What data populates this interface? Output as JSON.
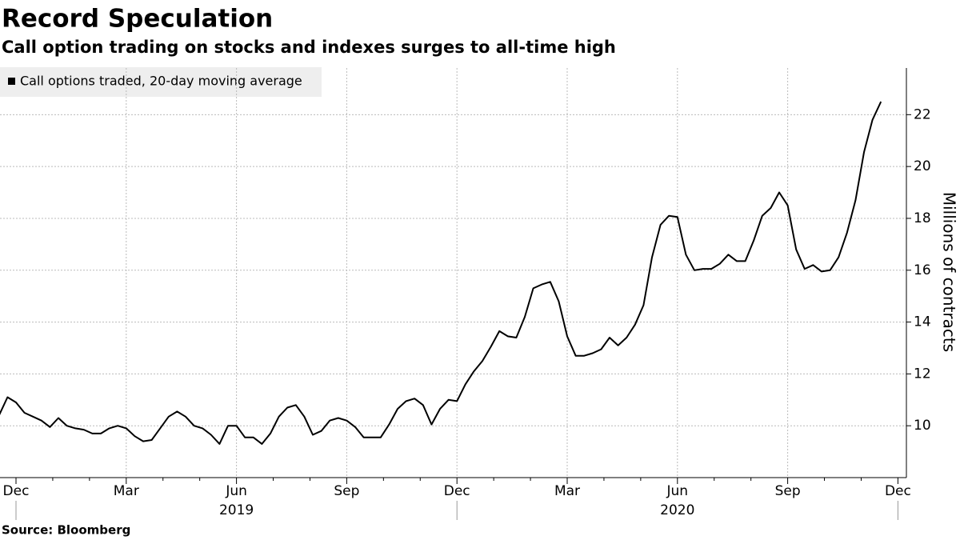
{
  "title": "Record Speculation",
  "subtitle": "Call option trading on stocks and indexes surges to all-time high",
  "source": "Source: Bloomberg",
  "chart_data": {
    "type": "line",
    "y_label": "Millions of contracts",
    "categories": [
      null,
      null,
      "Dec",
      null,
      null,
      null,
      null,
      null,
      null,
      null,
      null,
      null,
      null,
      null,
      null,
      "Mar",
      null,
      null,
      null,
      null,
      null,
      null,
      null,
      null,
      null,
      null,
      null,
      null,
      "Jun",
      null,
      null,
      null,
      null,
      null,
      null,
      null,
      null,
      null,
      null,
      null,
      null,
      "Sep",
      null,
      null,
      null,
      null,
      null,
      null,
      null,
      null,
      null,
      null,
      null,
      null,
      "Dec",
      null,
      null,
      null,
      null,
      null,
      null,
      null,
      null,
      null,
      null,
      null,
      null,
      "Mar",
      null,
      null,
      null,
      null,
      null,
      null,
      null,
      null,
      null,
      null,
      null,
      null,
      "Jun",
      null,
      null,
      null,
      null,
      null,
      null,
      null,
      null,
      null,
      null,
      null,
      null,
      "Sep",
      null,
      null,
      null,
      null,
      null,
      null,
      null,
      null,
      null,
      null,
      null,
      null,
      "Dec"
    ],
    "year_labels": [
      "2019",
      "2020"
    ],
    "series": [
      {
        "name": "Call options traded, 20-day moving average",
        "color": "#000000",
        "values": [
          10.4,
          11.1,
          10.9,
          10.5,
          10.35,
          10.2,
          9.95,
          10.3,
          10.0,
          9.9,
          9.85,
          9.7,
          9.7,
          9.9,
          10.0,
          9.9,
          9.6,
          9.4,
          9.45,
          9.9,
          10.35,
          10.55,
          10.35,
          10.0,
          9.9,
          9.65,
          9.3,
          10.0,
          10.0,
          9.55,
          9.55,
          9.3,
          9.7,
          10.35,
          10.7,
          10.8,
          10.35,
          9.65,
          9.8,
          10.2,
          10.3,
          10.2,
          9.95,
          9.55,
          9.55,
          9.55,
          10.05,
          10.65,
          10.95,
          11.05,
          10.8,
          10.05,
          10.65,
          11.0,
          10.95,
          11.6,
          12.1,
          12.5,
          13.05,
          13.65,
          13.45,
          13.4,
          14.2,
          15.3,
          15.45,
          15.55,
          14.8,
          13.45,
          12.7,
          12.7,
          12.8,
          12.95,
          13.4,
          13.1,
          13.4,
          13.9,
          14.65,
          16.5,
          17.75,
          18.1,
          18.05,
          16.6,
          16.0,
          16.05,
          16.05,
          16.25,
          16.6,
          16.35,
          16.35,
          17.15,
          18.1,
          18.4,
          19.0,
          18.5,
          16.8,
          16.05,
          16.2,
          15.95,
          16.0,
          16.5,
          17.45,
          18.7,
          20.55,
          21.8,
          22.5,
          null,
          null
        ]
      }
    ],
    "ylim": [
      8,
      23.8
    ],
    "yticks": [
      10,
      12,
      14,
      16,
      18,
      20,
      22
    ],
    "grid": true
  }
}
